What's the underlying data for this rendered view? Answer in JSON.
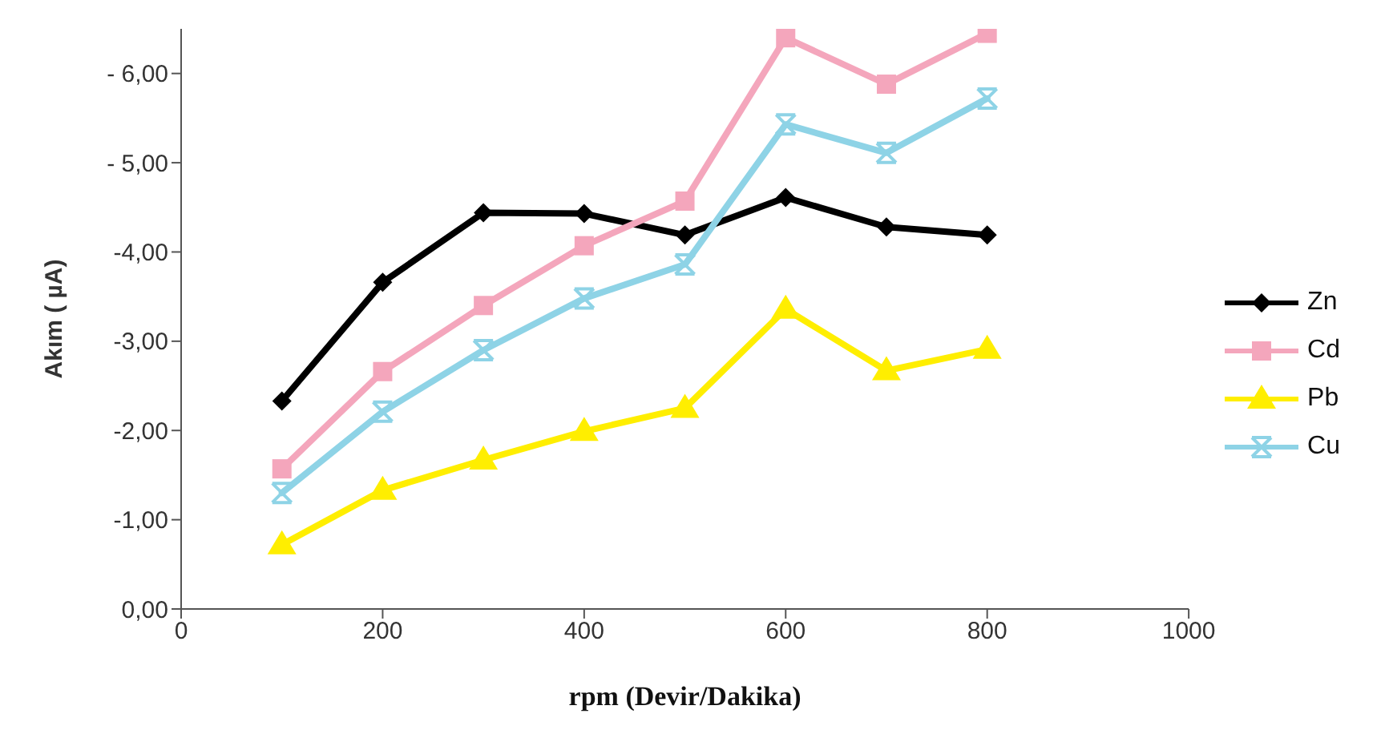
{
  "chart_data": {
    "type": "line",
    "xlabel": "rpm (Devir/Dakika)",
    "ylabel": "Akım ( µA)",
    "x": [
      100,
      200,
      300,
      400,
      500,
      600,
      700,
      800
    ],
    "series": [
      {
        "name": "Zn",
        "color": "#000000",
        "marker": "diamond",
        "values": [
          -2.33,
          -3.66,
          -4.44,
          -4.43,
          -4.19,
          -4.61,
          -4.28,
          -4.19
        ]
      },
      {
        "name": "Cd",
        "color": "#f4a6bc",
        "marker": "square",
        "values": [
          -1.57,
          -2.66,
          -3.4,
          -4.07,
          -4.57,
          -6.4,
          -5.88,
          -6.45
        ]
      },
      {
        "name": "Pb",
        "color": "#ffee00",
        "marker": "triangle",
        "values": [
          -0.72,
          -1.33,
          -1.67,
          -1.99,
          -2.25,
          -3.36,
          -2.67,
          -2.91
        ]
      },
      {
        "name": "Cu",
        "color": "#8ed3e6",
        "marker": "cross",
        "values": [
          -1.3,
          -2.21,
          -2.9,
          -3.48,
          -3.86,
          -5.43,
          -5.11,
          -5.72
        ]
      }
    ],
    "xlim": [
      0,
      1000
    ],
    "xticks": [
      0,
      200,
      400,
      600,
      800,
      1000
    ],
    "ylim": [
      0,
      -6.5
    ],
    "yticks": [
      {
        "value": 0,
        "label": "0,00"
      },
      {
        "value": -1,
        "label": "-1,00"
      },
      {
        "value": -2,
        "label": "-2,00"
      },
      {
        "value": -3,
        "label": "-3,00"
      },
      {
        "value": -4,
        "label": "-4,00"
      },
      {
        "value": -5,
        "label": "- 5,00"
      },
      {
        "value": -6,
        "label": "- 6,00"
      }
    ],
    "grid": false,
    "legend": "right"
  }
}
